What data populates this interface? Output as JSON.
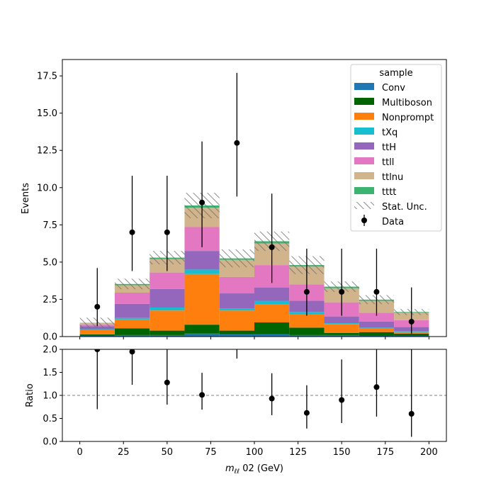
{
  "chart_data": {
    "type": "bar",
    "stacked": true,
    "xlabel": "m_{ℓℓ} 02 (GeV)",
    "xlabel_main": "m",
    "xlabel_sub": "ℓℓ",
    "xlabel_rest": " 02 (GeV)",
    "ylabel": "Events",
    "ratio_ylabel": "Ratio",
    "legend_title": "sample",
    "legend_position": "top-right",
    "xlim": [
      -10,
      210
    ],
    "ylim": [
      0,
      18.6
    ],
    "ratio_ylim": [
      0,
      2
    ],
    "x_ticks": [
      "0",
      "25",
      "50",
      "75",
      "100",
      "125",
      "150",
      "175",
      "200"
    ],
    "y_ticks": [
      "0.0",
      "2.5",
      "5.0",
      "7.5",
      "10.0",
      "12.5",
      "15.0",
      "17.5"
    ],
    "ratio_ticks": [
      "0.0",
      "0.5",
      "1.0",
      "1.5",
      "2.0"
    ],
    "bin_edges": [
      0,
      20,
      40,
      60,
      80,
      100,
      120,
      140,
      160,
      180,
      200
    ],
    "series": [
      {
        "name": "Conv",
        "color": "#1f77b4",
        "values": [
          0.05,
          0.1,
          0.1,
          0.2,
          0.15,
          0.15,
          0.1,
          0.1,
          0.05,
          0.05
        ]
      },
      {
        "name": "Multiboson",
        "color": "#006400",
        "values": [
          0.1,
          0.45,
          0.3,
          0.6,
          0.25,
          0.8,
          0.5,
          0.15,
          0.25,
          0.15
        ]
      },
      {
        "name": "Nonprompt",
        "color": "#ff7f0e",
        "values": [
          0.3,
          0.6,
          1.35,
          3.4,
          1.35,
          1.2,
          0.9,
          0.6,
          0.25,
          0.1
        ]
      },
      {
        "name": "tXq",
        "color": "#17becf",
        "values": [
          0.05,
          0.1,
          0.2,
          0.3,
          0.15,
          0.25,
          0.15,
          0.05,
          0.05,
          0.05
        ]
      },
      {
        "name": "ttH",
        "color": "#9467bd",
        "values": [
          0.2,
          0.95,
          1.25,
          1.25,
          1.0,
          0.9,
          0.75,
          0.45,
          0.4,
          0.3
        ]
      },
      {
        "name": "ttll",
        "color": "#e377c2",
        "values": [
          0.1,
          0.75,
          1.1,
          1.6,
          1.1,
          1.5,
          1.1,
          0.95,
          0.6,
          0.45
        ]
      },
      {
        "name": "ttlnu",
        "color": "#d2b48c",
        "values": [
          0.1,
          0.5,
          0.9,
          1.3,
          1.15,
          1.45,
          1.2,
          0.95,
          0.8,
          0.5
        ]
      },
      {
        "name": "tttt",
        "color": "#3cb371",
        "values": [
          0.02,
          0.08,
          0.1,
          0.15,
          0.1,
          0.15,
          0.1,
          0.1,
          0.08,
          0.05
        ]
      }
    ],
    "stat_unc": [
      0.35,
      0.35,
      0.45,
      0.85,
      0.6,
      0.65,
      0.6,
      0.35,
      0.3,
      0.2
    ],
    "stat_unc_label": "Stat. Unc.",
    "data": {
      "name": "Data",
      "x": [
        10,
        30,
        50,
        70,
        90,
        110,
        130,
        150,
        170,
        190
      ],
      "y": [
        2,
        7,
        7,
        9,
        13,
        6,
        3,
        3,
        3,
        1
      ],
      "err_low": [
        1.3,
        2.6,
        2.6,
        3.0,
        3.6,
        2.4,
        1.6,
        1.6,
        1.6,
        0.8
      ],
      "err_high": [
        2.6,
        3.8,
        3.8,
        4.1,
        4.7,
        3.6,
        2.9,
        2.9,
        2.9,
        2.3
      ]
    },
    "ratio": {
      "x": [
        10,
        30,
        50,
        70,
        90,
        110,
        130,
        150,
        170,
        190
      ],
      "y": [
        2.0,
        1.95,
        1.28,
        1.01,
        2.2,
        0.93,
        0.62,
        0.9,
        1.18,
        0.6
      ],
      "err_low": [
        1.3,
        0.72,
        0.48,
        0.32,
        0.4,
        0.36,
        0.34,
        0.5,
        0.64,
        0.5
      ],
      "err_high": [
        0.0,
        0.5,
        0.8,
        0.48,
        0.2,
        0.55,
        0.6,
        0.88,
        0.9,
        1.5
      ],
      "ref_line": 1.0
    }
  }
}
